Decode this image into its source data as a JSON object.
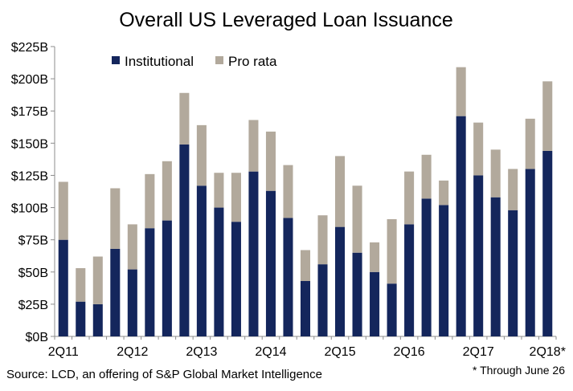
{
  "chart_data": {
    "type": "bar",
    "stacked": true,
    "title": "Overall US Leveraged Loan Issuance",
    "xlabel": "",
    "ylabel": "",
    "ylim": [
      0,
      225
    ],
    "y_ticks": [
      "$0B",
      "$25B",
      "$50B",
      "$75B",
      "$100B",
      "$125B",
      "$150B",
      "$175B",
      "$200B",
      "$225B"
    ],
    "y_tick_values": [
      0,
      25,
      50,
      75,
      100,
      125,
      150,
      175,
      200,
      225
    ],
    "categories": [
      "2Q11",
      "3Q11",
      "4Q11",
      "1Q12",
      "2Q12",
      "3Q12",
      "4Q12",
      "1Q13",
      "2Q13",
      "3Q13",
      "4Q13",
      "1Q14",
      "2Q14",
      "3Q14",
      "4Q14",
      "1Q15",
      "2Q15",
      "3Q15",
      "4Q15",
      "1Q16",
      "2Q16",
      "3Q16",
      "4Q16",
      "1Q17",
      "2Q17",
      "3Q17",
      "4Q17",
      "1Q18",
      "2Q18*"
    ],
    "x_tick_labels": [
      {
        "index": 0,
        "label": "2Q11"
      },
      {
        "index": 4,
        "label": "2Q12"
      },
      {
        "index": 8,
        "label": "2Q13"
      },
      {
        "index": 12,
        "label": "2Q14"
      },
      {
        "index": 16,
        "label": "2Q15"
      },
      {
        "index": 20,
        "label": "2Q16"
      },
      {
        "index": 24,
        "label": "2Q17"
      },
      {
        "index": 28,
        "label": "2Q18*"
      }
    ],
    "series": [
      {
        "name": "Institutional",
        "color": "#14265c",
        "values": [
          75,
          27,
          25,
          68,
          52,
          84,
          90,
          149,
          117,
          100,
          89,
          128,
          113,
          92,
          43,
          56,
          85,
          65,
          50,
          41,
          87,
          107,
          102,
          171,
          125,
          108,
          98,
          130,
          144
        ]
      },
      {
        "name": "Pro rata",
        "color": "#b2a99c",
        "values": [
          45,
          26,
          37,
          47,
          35,
          42,
          46,
          40,
          47,
          27,
          38,
          40,
          46,
          41,
          24,
          38,
          55,
          52,
          23,
          50,
          41,
          34,
          19,
          38,
          41,
          37,
          32,
          39,
          54
        ]
      }
    ],
    "legend": "top-left",
    "grid": false
  },
  "footer": {
    "source": "Source: LCD, an offering of S&P Global Market Intelligence",
    "note": "* Through June 26"
  }
}
